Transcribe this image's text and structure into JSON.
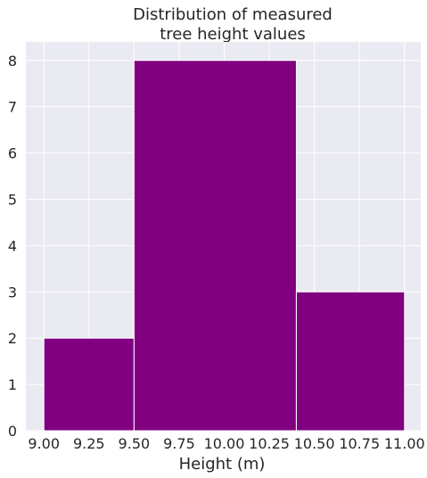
{
  "chart_data": {
    "type": "bar",
    "subtype": "histogram",
    "title_lines": [
      "Distribution of measured",
      "tree height values"
    ],
    "xlabel": "Height (m)",
    "ylabel": "",
    "bins": [
      {
        "start": 9.0,
        "end": 9.5,
        "count": 2
      },
      {
        "start": 9.5,
        "end": 10.4,
        "count": 8
      },
      {
        "start": 10.4,
        "end": 11.0,
        "count": 3
      }
    ],
    "xlim": [
      8.9,
      11.09
    ],
    "ylim": [
      0,
      8.4
    ],
    "xticks": [
      {
        "value": 9.0,
        "label": "9.00"
      },
      {
        "value": 9.25,
        "label": "9.25"
      },
      {
        "value": 9.5,
        "label": "9.50"
      },
      {
        "value": 9.75,
        "label": "9.75"
      },
      {
        "value": 10.0,
        "label": "10.00"
      },
      {
        "value": 10.25,
        "label": "10.25"
      },
      {
        "value": 10.5,
        "label": "10.50"
      },
      {
        "value": 10.75,
        "label": "10.75"
      },
      {
        "value": 11.0,
        "label": "11.00"
      }
    ],
    "yticks": [
      {
        "value": 0,
        "label": "0"
      },
      {
        "value": 1,
        "label": "1"
      },
      {
        "value": 2,
        "label": "2"
      },
      {
        "value": 3,
        "label": "3"
      },
      {
        "value": 4,
        "label": "4"
      },
      {
        "value": 5,
        "label": "5"
      },
      {
        "value": 6,
        "label": "6"
      },
      {
        "value": 7,
        "label": "7"
      },
      {
        "value": 8,
        "label": "8"
      }
    ],
    "grid": true,
    "colors": {
      "bar": "#800080",
      "bar_edge": "#ffffff",
      "background": "#eaeaf2",
      "grid": "#ffffff"
    }
  }
}
